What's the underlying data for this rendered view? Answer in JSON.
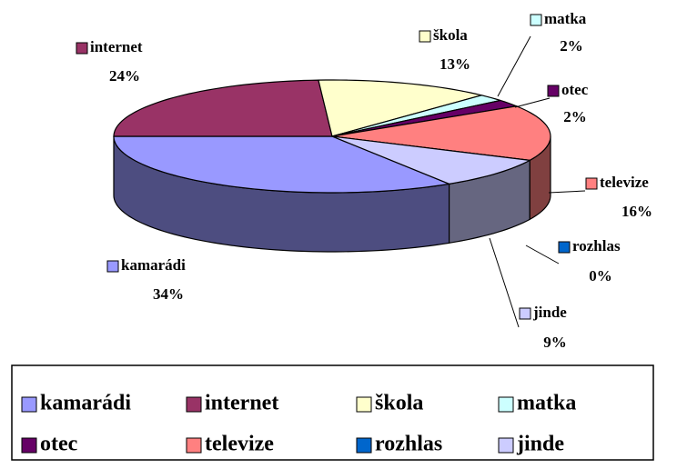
{
  "chart_data": {
    "type": "pie",
    "categories": [
      "kamarádi",
      "internet",
      "škola",
      "matka",
      "otec",
      "televize",
      "rozhlas",
      "jinde"
    ],
    "values": [
      34,
      24,
      13,
      2,
      2,
      16,
      0,
      9
    ],
    "value_labels": [
      "34%",
      "24%",
      "13%",
      "2%",
      "2%",
      "16%",
      "0%",
      "9%"
    ],
    "colors": [
      "#9999ff",
      "#993366",
      "#ffffcc",
      "#ccffff",
      "#660066",
      "#ff8080",
      "#0066cc",
      "#ccccff"
    ],
    "legend": "bottom"
  }
}
